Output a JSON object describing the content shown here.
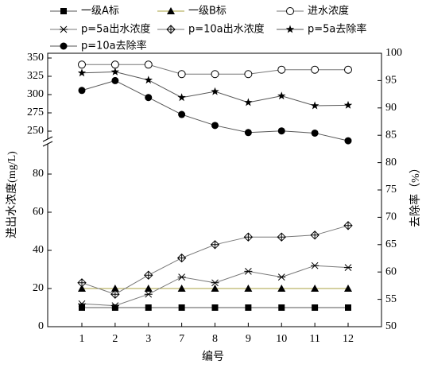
{
  "chart_data": {
    "type": "line",
    "categories": [
      "1",
      "2",
      "3",
      "7",
      "8",
      "9",
      "10",
      "11",
      "12"
    ],
    "xlabel": "编号",
    "ylabel": "进出水浓度(mg/L)",
    "y2label": "去除率（%）",
    "y_segments": [
      {
        "ylim": [
          0,
          96
        ],
        "yticks": [
          0,
          20,
          40,
          60,
          80
        ]
      },
      {
        "ylim": [
          236,
          350
        ],
        "yticks": [
          250,
          275,
          300,
          325,
          350
        ]
      }
    ],
    "y2lim": [
      50,
      100
    ],
    "y2ticks": [
      50,
      55,
      60,
      65,
      70,
      75,
      80,
      85,
      90,
      95,
      100
    ],
    "series": [
      {
        "name": "一级A标",
        "color": "#000000",
        "line": "#555555",
        "marker": "square",
        "values": [
          10,
          10,
          10,
          10,
          10,
          10,
          10,
          10,
          10
        ]
      },
      {
        "name": "一级B标",
        "color": "#000000",
        "line": "#a8a040",
        "marker": "triangle",
        "values": [
          20,
          20,
          20,
          20,
          20,
          20,
          20,
          20,
          20
        ]
      },
      {
        "name": "进水浓度",
        "color": "#000000",
        "line": "#777777",
        "marker": "open-circle",
        "values": [
          341,
          341,
          341,
          328,
          328,
          328,
          334,
          334,
          334
        ]
      },
      {
        "name": "p=5a出水浓度",
        "color": "#000000",
        "line": "#777777",
        "marker": "asterisk",
        "values": [
          12,
          11,
          17,
          26,
          23,
          29,
          26,
          32,
          31
        ]
      },
      {
        "name": "p=10a出水浓度",
        "color": "#000000",
        "line": "#777777",
        "marker": "diamond-plus",
        "values": [
          23,
          17,
          27,
          36,
          43,
          47,
          47,
          48,
          53
        ]
      },
      {
        "name": "p=5a去除率",
        "color": "#000000",
        "line": "#555555",
        "marker": "star",
        "axis": "y2",
        "values": [
          96.4,
          96.6,
          95.1,
          91.9,
          93.0,
          91.0,
          92.2,
          90.4,
          90.5
        ]
      },
      {
        "name": "p=10a去除率",
        "color": "#000000",
        "line": "#555555",
        "marker": "circle",
        "axis": "y2",
        "values": [
          93.2,
          95.0,
          91.9,
          88.8,
          86.8,
          85.5,
          85.8,
          85.4,
          84.0
        ]
      }
    ]
  }
}
